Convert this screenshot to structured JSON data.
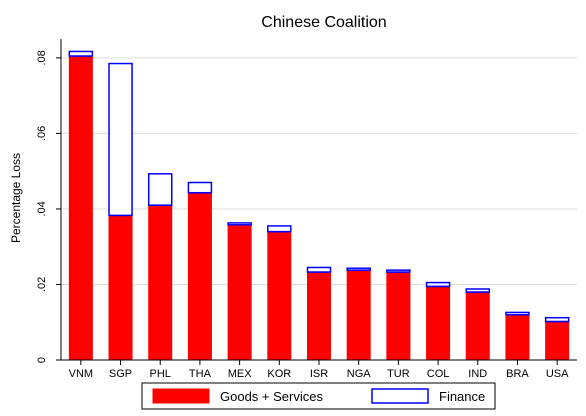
{
  "chart_data": {
    "type": "bar",
    "stacked": true,
    "title": "Chinese Coalition",
    "xlabel": "",
    "ylabel": "Percentage Loss",
    "ylim": [
      0,
      0.085
    ],
    "yticks": [
      0,
      0.02,
      0.04,
      0.06,
      0.08
    ],
    "ytick_labels": [
      "0",
      ".02",
      ".04",
      ".06",
      ".08"
    ],
    "grid": true,
    "legend_position": "bottom",
    "categories": [
      "VNM",
      "SGP",
      "PHL",
      "THA",
      "MEX",
      "KOR",
      "ISR",
      "NGA",
      "TUR",
      "COL",
      "IND",
      "BRA",
      "USA"
    ],
    "series": [
      {
        "name": "Goods + Services",
        "color": "#ff0000",
        "values": [
          0.0805,
          0.0383,
          0.041,
          0.0443,
          0.0358,
          0.034,
          0.0233,
          0.0238,
          0.0233,
          0.0195,
          0.018,
          0.012,
          0.0102
        ]
      },
      {
        "name": "Finance",
        "color": "#0000ff",
        "values": [
          0.0012,
          0.0402,
          0.0083,
          0.0027,
          0.0005,
          0.0015,
          0.0012,
          0.0005,
          0.0005,
          0.001,
          0.0008,
          0.0006,
          0.001
        ]
      }
    ]
  }
}
